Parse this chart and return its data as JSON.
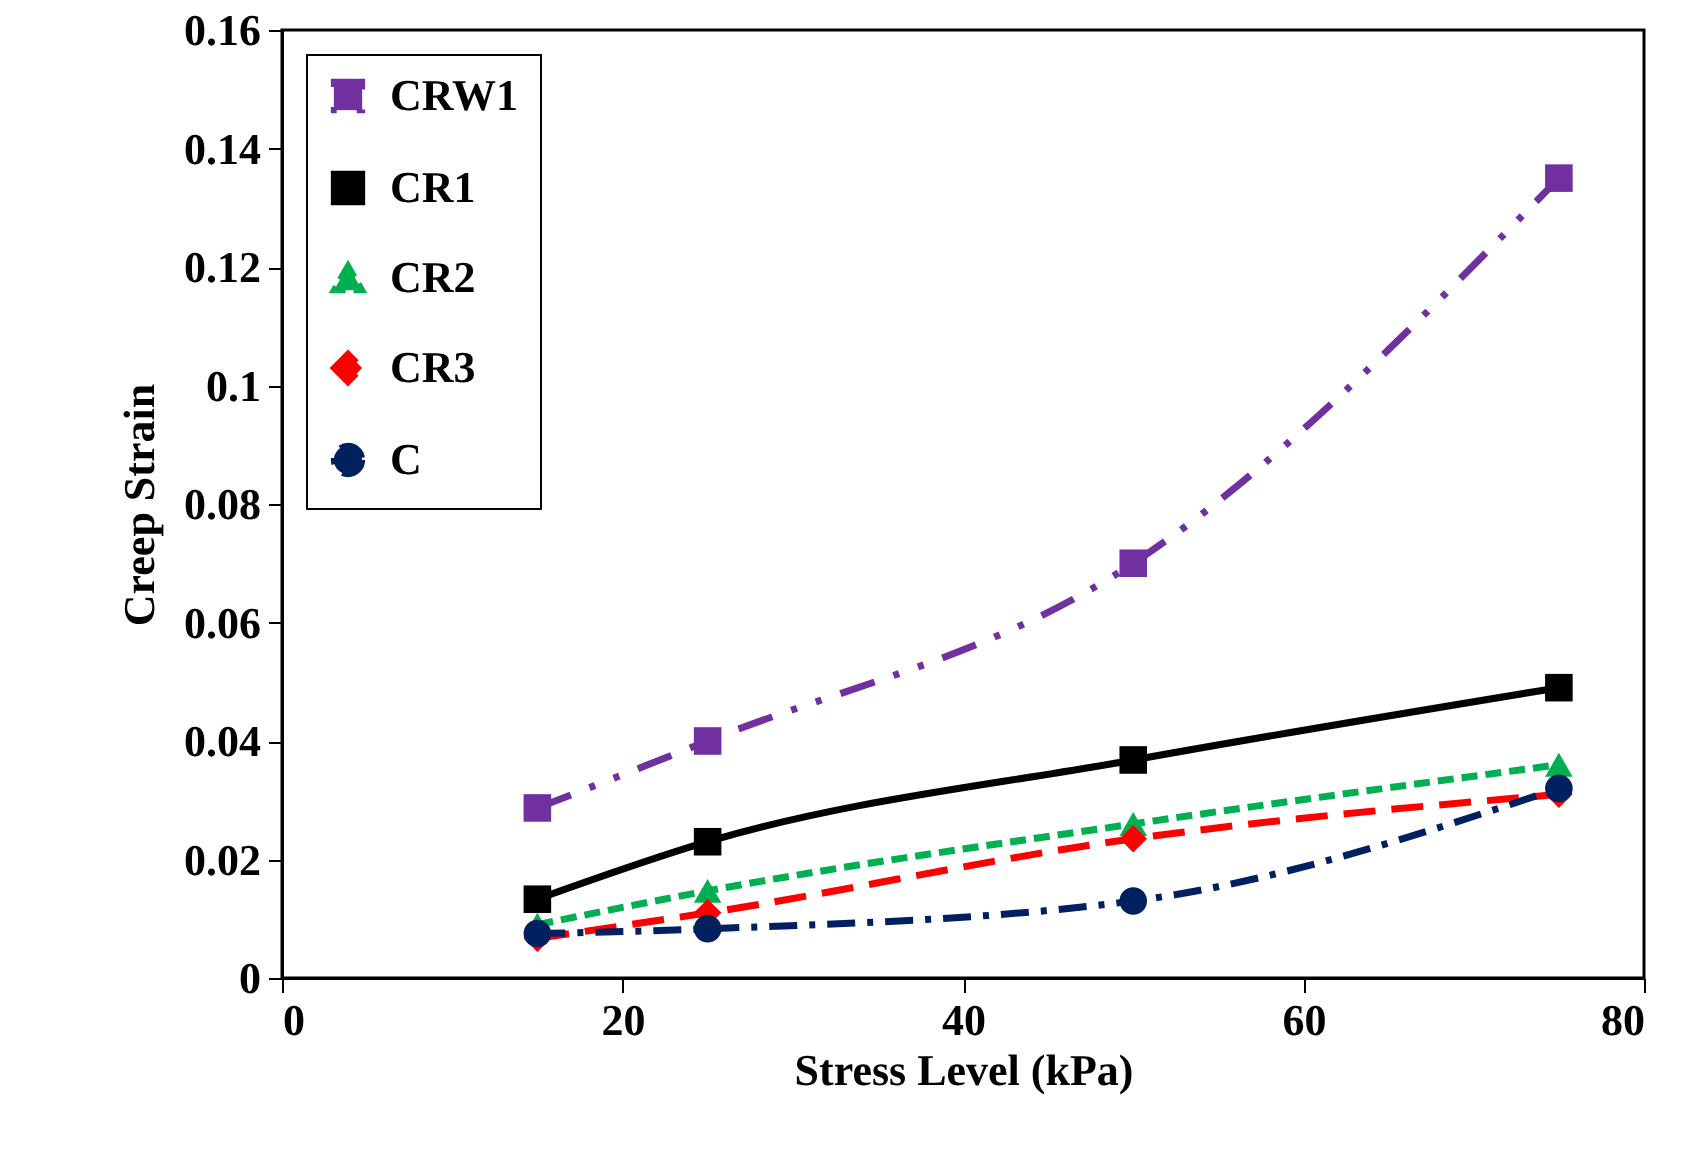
{
  "chart_data": {
    "type": "line",
    "xlabel": "Stress Level (kPa)",
    "ylabel": "Creep Strain",
    "x": [
      15,
      25,
      50,
      75
    ],
    "series": [
      {
        "name": "CRW1",
        "color": "#7030a0",
        "marker": "square",
        "line_style": "dashdotdot",
        "values": [
          0.0287,
          0.04,
          0.07,
          0.135
        ]
      },
      {
        "name": "CR1",
        "color": "#000000",
        "marker": "square",
        "line_style": "solid",
        "values": [
          0.0133,
          0.023,
          0.0368,
          0.049
        ]
      },
      {
        "name": "CR2",
        "color": "#00b050",
        "marker": "triangle",
        "line_style": "dashed",
        "values": [
          0.009,
          0.0147,
          0.026,
          0.036
        ]
      },
      {
        "name": "CR3",
        "color": "#ff0000",
        "marker": "diamond",
        "line_style": "longdash",
        "values": [
          0.0067,
          0.011,
          0.0235,
          0.031
        ]
      },
      {
        "name": "C",
        "color": "#002060",
        "marker": "circle",
        "line_style": "dashdot",
        "values": [
          0.0075,
          0.0083,
          0.013,
          0.032
        ]
      }
    ],
    "xlim": [
      0,
      80
    ],
    "xticks": [
      0,
      20,
      40,
      60,
      80
    ],
    "ylim": [
      0,
      0.16
    ],
    "yticks": [
      0,
      0.02,
      0.04,
      0.06,
      0.08,
      0.1,
      0.12,
      0.14,
      0.16
    ],
    "grid": false,
    "legend": "top left"
  }
}
